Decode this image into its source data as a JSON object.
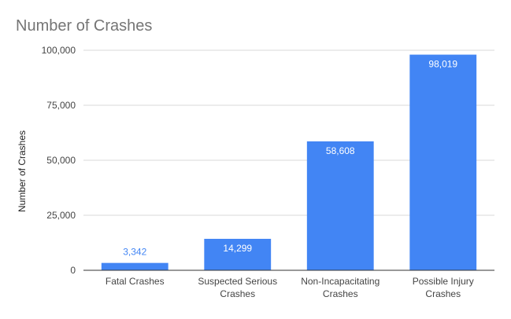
{
  "chart_data": {
    "type": "bar",
    "title": "Number of Crashes",
    "xlabel": "",
    "ylabel": "Number of Crashes",
    "categories": [
      "Fatal Crashes",
      "Suspected Serious Crashes",
      "Non-Incapacitating Crashes",
      "Possible Injury Crashes"
    ],
    "category_lines": [
      [
        "Fatal Crashes"
      ],
      [
        "Suspected Serious",
        "Crashes"
      ],
      [
        "Non-Incapacitating",
        "Crashes"
      ],
      [
        "Possible Injury",
        "Crashes"
      ]
    ],
    "values": [
      3342,
      14299,
      58608,
      98019
    ],
    "value_labels": [
      "3,342",
      "14,299",
      "58,608",
      "98,019"
    ],
    "ylim": [
      0,
      100000
    ],
    "yticks": [
      0,
      25000,
      50000,
      75000,
      100000
    ],
    "ytick_labels": [
      "0",
      "25,000",
      "50,000",
      "75,000",
      "100,000"
    ],
    "grid": true,
    "legend": "none",
    "colors": {
      "bar": "#4285f4",
      "label_inside": "#ffffff",
      "label_outside": "#4285f4",
      "title": "#757575",
      "axis_text": "#444444",
      "grid": "#d9d9d9",
      "baseline": "#333333"
    }
  }
}
